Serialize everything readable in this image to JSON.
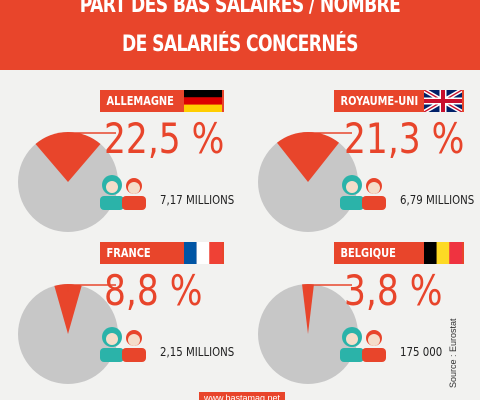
{
  "header": {
    "line1": "PART DES BAS SALAIRES / NOMBRE",
    "line2": "DE SALARIÉS CONCERNÉS"
  },
  "colors": {
    "accent": "#e8452b",
    "pie_rest": "#c7c7c7",
    "person_female": "#2bb3a9",
    "person_male": "#e8452b"
  },
  "icons": [
    "woman-icon",
    "man-icon"
  ],
  "chart_data": {
    "type": "pie",
    "charts": [
      {
        "country": "ALLEMAGNE",
        "percent_label": "22,5 %",
        "value": 22.5,
        "employees": "7,17 MILLIONS",
        "flag": "germany"
      },
      {
        "country": "ROYAUME-UNI",
        "percent_label": "21,3 %",
        "value": 21.3,
        "employees": "6,79 MILLIONS",
        "flag": "united-kingdom"
      },
      {
        "country": "FRANCE",
        "percent_label": "8,8 %",
        "value": 8.8,
        "employees": "2,15 MILLIONS",
        "flag": "france"
      },
      {
        "country": "BELGIQUE",
        "percent_label": "3,8 %",
        "value": 3.8,
        "employees": "175 000",
        "flag": "belgium"
      }
    ]
  },
  "source": "Source : Eurostat",
  "footer": "www.bastamag.net"
}
